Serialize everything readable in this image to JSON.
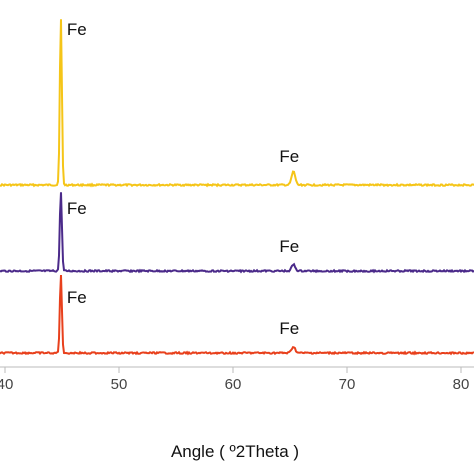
{
  "chart_data": {
    "type": "line",
    "title": "",
    "xlabel": "Angle ( º2Theta )",
    "ylabel": "",
    "xlim": [
      40,
      82
    ],
    "x_ticks": [
      {
        "value": 40,
        "label": "40"
      },
      {
        "value": 50,
        "label": "50"
      },
      {
        "value": 60,
        "label": "60"
      },
      {
        "value": 70,
        "label": "70"
      },
      {
        "value": 80,
        "label": "80"
      }
    ],
    "grid": false,
    "legend": "none",
    "series": [
      {
        "color": "#f5c518",
        "peaks": [
          {
            "x": 44.9,
            "height": 1.0,
            "label": "Fe"
          },
          {
            "x": 65.3,
            "height": 0.08,
            "label": "Fe"
          }
        ]
      },
      {
        "color": "#4b2a8a",
        "peaks": [
          {
            "x": 44.9,
            "height": 1.0,
            "label": "Fe"
          },
          {
            "x": 65.3,
            "height": 0.08,
            "label": "Fe"
          }
        ]
      },
      {
        "color": "#e8401c",
        "peaks": [
          {
            "x": 44.9,
            "height": 1.0,
            "label": "Fe"
          },
          {
            "x": 65.3,
            "height": 0.08,
            "label": "Fe"
          }
        ]
      }
    ]
  }
}
